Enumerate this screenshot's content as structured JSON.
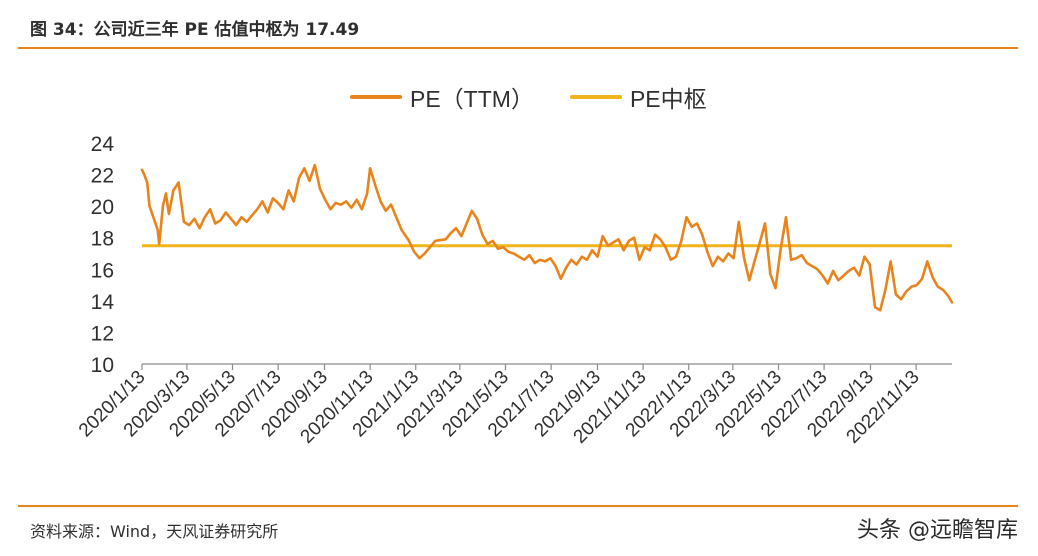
{
  "figure_title": "图 34：公司近三年 PE 估值中枢为 17.49",
  "source_text": "资料来源：Wind，天风证券研究所",
  "watermark": "头条 @远瞻智库",
  "colors": {
    "rule": "#e8841c",
    "pe_line": "#e8841c",
    "center_line": "#f2b41c",
    "axis": "#8c8c8c"
  },
  "chart_data": {
    "type": "line",
    "title": "图 34：公司近三年 PE 估值中枢为 17.49",
    "legend": [
      "PE（TTM）",
      "PE中枢"
    ],
    "legend_position": "top-center",
    "grid": false,
    "ylim": [
      10,
      24
    ],
    "yticks": [
      10,
      12,
      14,
      16,
      18,
      20,
      22,
      24
    ],
    "xlim": [
      "2020-01-13",
      "2022-12-31"
    ],
    "xticks": [
      "2020/1/13",
      "2020/3/13",
      "2020/5/13",
      "2020/7/13",
      "2020/9/13",
      "2020/11/13",
      "2021/1/13",
      "2021/3/13",
      "2021/5/13",
      "2021/7/13",
      "2021/9/13",
      "2021/11/13",
      "2022/1/13",
      "2022/3/13",
      "2022/5/13",
      "2022/7/13",
      "2022/9/13",
      "2022/11/13"
    ],
    "series": [
      {
        "name": "PE（TTM）",
        "color": "#e8841c",
        "x": [
          "2020-01-13",
          "2020-01-16",
          "2020-01-20",
          "2020-01-23",
          "2020-02-03",
          "2020-02-05",
          "2020-02-10",
          "2020-02-14",
          "2020-02-18",
          "2020-02-24",
          "2020-03-02",
          "2020-03-09",
          "2020-03-16",
          "2020-03-23",
          "2020-03-30",
          "2020-04-06",
          "2020-04-13",
          "2020-04-20",
          "2020-04-27",
          "2020-05-04",
          "2020-05-11",
          "2020-05-18",
          "2020-05-25",
          "2020-06-01",
          "2020-06-08",
          "2020-06-15",
          "2020-06-22",
          "2020-06-29",
          "2020-07-06",
          "2020-07-13",
          "2020-07-20",
          "2020-07-27",
          "2020-08-03",
          "2020-08-10",
          "2020-08-17",
          "2020-08-24",
          "2020-08-31",
          "2020-09-07",
          "2020-09-14",
          "2020-09-21",
          "2020-09-28",
          "2020-10-05",
          "2020-10-12",
          "2020-10-19",
          "2020-10-26",
          "2020-11-02",
          "2020-11-09",
          "2020-11-13",
          "2020-11-20",
          "2020-11-27",
          "2020-12-04",
          "2020-12-11",
          "2020-12-18",
          "2020-12-25",
          "2021-01-04",
          "2021-01-11",
          "2021-01-18",
          "2021-01-25",
          "2021-02-01",
          "2021-02-08",
          "2021-02-22",
          "2021-03-01",
          "2021-03-08",
          "2021-03-15",
          "2021-03-22",
          "2021-03-29",
          "2021-04-05",
          "2021-04-12",
          "2021-04-19",
          "2021-04-26",
          "2021-05-03",
          "2021-05-10",
          "2021-05-17",
          "2021-05-24",
          "2021-05-31",
          "2021-06-07",
          "2021-06-14",
          "2021-06-21",
          "2021-06-28",
          "2021-07-05",
          "2021-07-12",
          "2021-07-19",
          "2021-07-26",
          "2021-08-02",
          "2021-08-09",
          "2021-08-16",
          "2021-08-23",
          "2021-08-30",
          "2021-09-06",
          "2021-09-13",
          "2021-09-20",
          "2021-09-27",
          "2021-10-04",
          "2021-10-11",
          "2021-10-18",
          "2021-10-25",
          "2021-11-01",
          "2021-11-08",
          "2021-11-15",
          "2021-11-22",
          "2021-11-29",
          "2021-12-06",
          "2021-12-13",
          "2021-12-20",
          "2021-12-27",
          "2022-01-03",
          "2022-01-10",
          "2022-01-17",
          "2022-01-24",
          "2022-01-31",
          "2022-02-07",
          "2022-02-14",
          "2022-02-21",
          "2022-02-28",
          "2022-03-07",
          "2022-03-14",
          "2022-03-21",
          "2022-03-28",
          "2022-04-04",
          "2022-04-11",
          "2022-04-18",
          "2022-04-25",
          "2022-05-02",
          "2022-05-09",
          "2022-05-16",
          "2022-05-23",
          "2022-05-30",
          "2022-06-06",
          "2022-06-13",
          "2022-06-20",
          "2022-06-27",
          "2022-07-04",
          "2022-07-11",
          "2022-07-18",
          "2022-07-25",
          "2022-08-01",
          "2022-08-08",
          "2022-08-15",
          "2022-08-22",
          "2022-08-29",
          "2022-09-05",
          "2022-09-12",
          "2022-09-19",
          "2022-09-26",
          "2022-10-03",
          "2022-10-10",
          "2022-10-17",
          "2022-10-24",
          "2022-10-31",
          "2022-11-07",
          "2022-11-14",
          "2022-11-21",
          "2022-11-28",
          "2022-12-05",
          "2022-12-12",
          "2022-12-19",
          "2022-12-26",
          "2022-12-31"
        ],
        "y": [
          22.3,
          22.0,
          21.5,
          20.0,
          18.5,
          17.6,
          20.0,
          20.8,
          19.5,
          21.0,
          21.5,
          19.0,
          18.8,
          19.2,
          18.6,
          19.3,
          19.8,
          18.9,
          19.1,
          19.6,
          19.2,
          18.8,
          19.3,
          19.0,
          19.4,
          19.8,
          20.3,
          19.6,
          20.5,
          20.2,
          19.8,
          21.0,
          20.3,
          21.8,
          22.4,
          21.6,
          22.6,
          21.1,
          20.4,
          19.8,
          20.2,
          20.1,
          20.3,
          19.9,
          20.4,
          19.8,
          20.8,
          22.4,
          21.3,
          20.3,
          19.7,
          20.1,
          19.3,
          18.5,
          17.8,
          17.1,
          16.7,
          17.0,
          17.4,
          17.8,
          17.9,
          18.3,
          18.6,
          18.1,
          18.9,
          19.7,
          19.2,
          18.2,
          17.6,
          17.8,
          17.3,
          17.4,
          17.1,
          17.0,
          16.8,
          16.6,
          16.9,
          16.4,
          16.6,
          16.5,
          16.7,
          16.2,
          15.4,
          16.1,
          16.6,
          16.3,
          16.8,
          16.6,
          17.2,
          16.8,
          18.1,
          17.5,
          17.7,
          17.9,
          17.2,
          17.8,
          18.0,
          16.6,
          17.4,
          17.2,
          18.2,
          17.9,
          17.4,
          16.6,
          16.8,
          17.8,
          19.3,
          18.7,
          18.9,
          18.2,
          17.1,
          16.2,
          16.8,
          16.5,
          17.0,
          16.7,
          19.0,
          16.7,
          15.3,
          16.5,
          17.7,
          18.9,
          15.7,
          14.8,
          17.3,
          19.3,
          16.6,
          16.7,
          16.9,
          16.4,
          16.2,
          16.0,
          15.6,
          15.1,
          15.9,
          15.3,
          15.6,
          15.9,
          16.1,
          15.6,
          16.8,
          16.3,
          13.6,
          13.4,
          14.7,
          16.5,
          14.4,
          14.1,
          14.6,
          14.9,
          15.0,
          15.4,
          16.5,
          15.5,
          14.9,
          14.7,
          14.3,
          13.9
        ]
      },
      {
        "name": "PE中枢",
        "color": "#f2b41c",
        "value": 17.49
      }
    ]
  }
}
